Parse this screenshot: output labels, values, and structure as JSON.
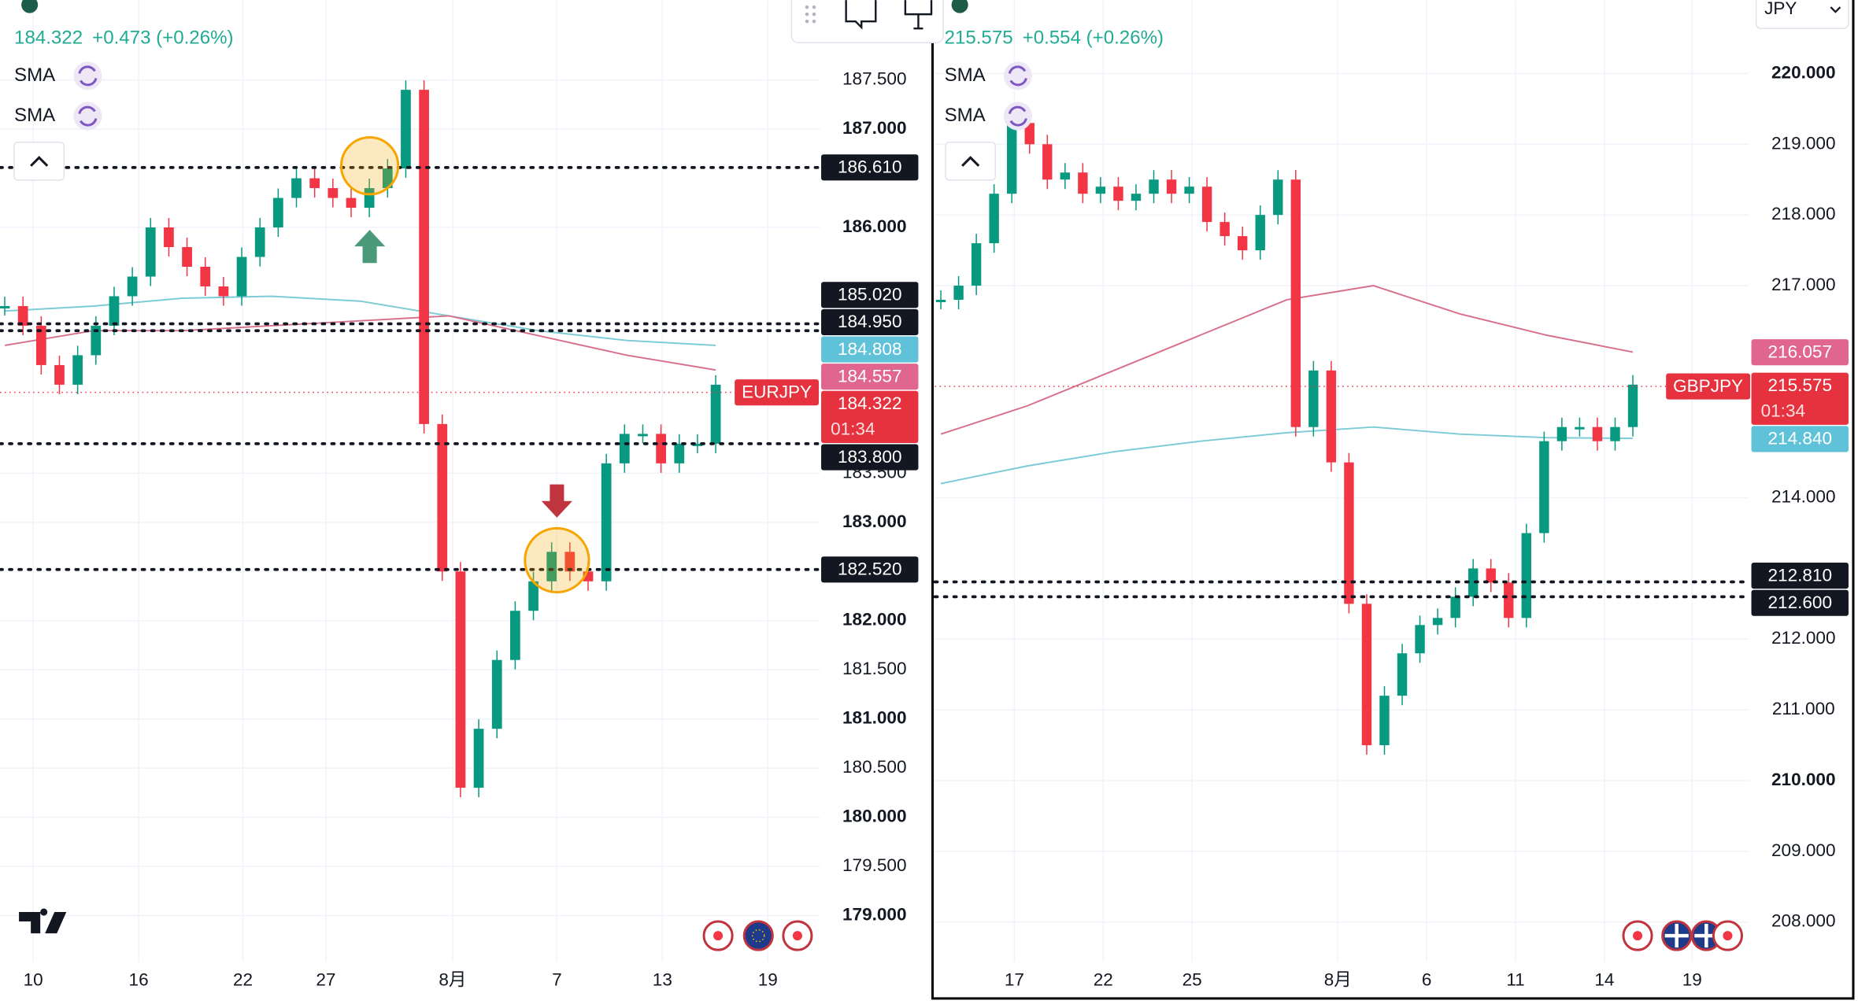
{
  "left": {
    "quote": "184.322",
    "change": "+0.473 (+0.26%)",
    "indicators": [
      "SMA",
      "SMA"
    ],
    "symbol": "EURJPY",
    "countdown": "01:34",
    "ylim": [
      178.554,
      188.313
    ],
    "yticks": [
      {
        "value": 187.5,
        "label": "187.500"
      },
      {
        "value": 187,
        "label": "187.000"
      },
      {
        "value": 186,
        "label": "186.000"
      },
      {
        "value": 183.5,
        "label": "183.500"
      },
      {
        "value": 183,
        "label": "183.000"
      },
      {
        "value": 182,
        "label": "182.000"
      },
      {
        "value": 181.5,
        "label": "181.500"
      },
      {
        "value": 181,
        "label": "181.000"
      },
      {
        "value": 180.5,
        "label": "180.500"
      },
      {
        "value": 180,
        "label": "180.000"
      },
      {
        "value": 179.5,
        "label": "179.500"
      },
      {
        "value": 179,
        "label": "179.000"
      }
    ],
    "xlabels": [
      "10",
      "16",
      "22",
      "27",
      "8月",
      "7",
      "13",
      "19"
    ],
    "price_labels": [
      {
        "value": 186.61,
        "label": "186.610",
        "kind": "black"
      },
      {
        "value": 185.02,
        "label": "185.020",
        "kind": "black"
      },
      {
        "value": 184.95,
        "label": "184.950",
        "kind": "black"
      },
      {
        "value": 184.808,
        "label": "184.808",
        "kind": "blue"
      },
      {
        "value": 184.557,
        "label": "184.557",
        "kind": "pink"
      },
      {
        "value": 184.322,
        "label": "184.322",
        "kind": "red"
      },
      {
        "value": 183.8,
        "label": "183.800",
        "kind": "black"
      },
      {
        "value": 182.52,
        "label": "182.520",
        "kind": "black"
      }
    ],
    "closes": [
      185.2,
      185.0,
      184.6,
      184.4,
      184.7,
      185.0,
      185.3,
      185.5,
      186.0,
      185.8,
      185.6,
      185.4,
      185.3,
      185.7,
      186.0,
      186.3,
      186.5,
      186.4,
      186.3,
      186.2,
      186.4,
      186.6,
      187.4,
      184.0,
      182.5,
      180.3,
      180.9,
      181.6,
      182.1,
      182.4,
      182.7,
      182.5,
      182.4,
      183.6,
      183.9,
      183.9,
      183.6,
      183.8,
      183.8,
      184.4
    ],
    "sma_blue": [
      185.15,
      185.2,
      185.28,
      185.3,
      185.25,
      185.1,
      184.95,
      184.85,
      184.8
    ],
    "sma_pink": [
      184.8,
      184.95,
      184.95,
      185.0,
      185.05,
      185.1,
      184.9,
      184.7,
      184.55
    ]
  },
  "right": {
    "quote": "215.575",
    "change": "+0.554 (+0.26%)",
    "indicators": [
      "SMA",
      "SMA"
    ],
    "symbol": "GBPJPY",
    "countdown": "01:34",
    "currency": "JPY",
    "ylim": [
      207.471,
      221.039
    ],
    "yticks": [
      {
        "value": 220,
        "label": "220.000"
      },
      {
        "value": 219,
        "label": "219.000"
      },
      {
        "value": 218,
        "label": "218.000"
      },
      {
        "value": 217,
        "label": "217.000"
      },
      {
        "value": 214,
        "label": "214.000"
      },
      {
        "value": 212,
        "label": "212.000"
      },
      {
        "value": 211,
        "label": "211.000"
      },
      {
        "value": 210,
        "label": "210.000"
      },
      {
        "value": 209,
        "label": "209.000"
      },
      {
        "value": 208,
        "label": "208.000"
      }
    ],
    "xlabels": [
      "17",
      "22",
      "25",
      "8月",
      "6",
      "11",
      "14",
      "19"
    ],
    "price_labels": [
      {
        "value": 216.057,
        "label": "216.057",
        "kind": "pink"
      },
      {
        "value": 215.575,
        "label": "215.575",
        "kind": "red"
      },
      {
        "value": 214.84,
        "label": "214.840",
        "kind": "blue"
      },
      {
        "value": 212.81,
        "label": "212.810",
        "kind": "black"
      },
      {
        "value": 212.6,
        "label": "212.600",
        "kind": "black"
      }
    ],
    "closes": [
      216.8,
      217.0,
      217.6,
      218.3,
      219.3,
      219.0,
      218.5,
      218.6,
      218.3,
      218.4,
      218.2,
      218.3,
      218.5,
      218.3,
      218.4,
      217.9,
      217.7,
      217.5,
      218.0,
      218.5,
      215.0,
      215.8,
      214.5,
      212.5,
      210.5,
      211.2,
      211.8,
      212.2,
      212.3,
      212.6,
      213.0,
      212.8,
      212.3,
      213.5,
      214.8,
      215.0,
      215.0,
      214.8,
      215.0,
      215.6
    ],
    "sma_blue": [
      214.2,
      214.45,
      214.65,
      214.8,
      214.92,
      215.0,
      214.9,
      214.85,
      214.84
    ],
    "sma_pink": [
      214.9,
      215.3,
      215.8,
      216.3,
      216.8,
      217.0,
      216.6,
      216.3,
      216.06
    ]
  }
}
